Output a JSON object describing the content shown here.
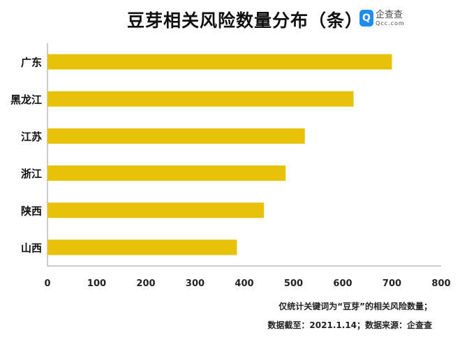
{
  "chart_data": {
    "type": "bar",
    "orientation": "horizontal",
    "title": "豆芽相关风险数量分布（条）",
    "categories": [
      "广东",
      "黑龙江",
      "江苏",
      "浙江",
      "陕西",
      "山西"
    ],
    "values": [
      700,
      622,
      523,
      484,
      440,
      385
    ],
    "xlim": [
      0,
      800
    ],
    "xticks": [
      "0",
      "100",
      "200",
      "300",
      "400",
      "500",
      "600",
      "700",
      "800"
    ],
    "grid": false,
    "bar_color": "#e8c20a"
  },
  "logo": {
    "name": "企查查",
    "domain": "Qcc.com"
  },
  "notes": [
    "仅统计关键词为“豆芽”的相关风险数量；",
    "数据截至：2021.1.14；数据来源：企查查"
  ]
}
